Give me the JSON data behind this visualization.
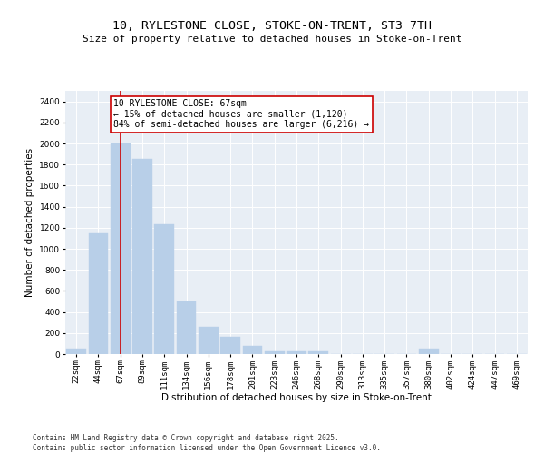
{
  "title": "10, RYLESTONE CLOSE, STOKE-ON-TRENT, ST3 7TH",
  "subtitle": "Size of property relative to detached houses in Stoke-on-Trent",
  "xlabel": "Distribution of detached houses by size in Stoke-on-Trent",
  "ylabel": "Number of detached properties",
  "categories": [
    "22sqm",
    "44sqm",
    "67sqm",
    "89sqm",
    "111sqm",
    "134sqm",
    "156sqm",
    "178sqm",
    "201sqm",
    "223sqm",
    "246sqm",
    "268sqm",
    "290sqm",
    "313sqm",
    "335sqm",
    "357sqm",
    "380sqm",
    "402sqm",
    "424sqm",
    "447sqm",
    "469sqm"
  ],
  "values": [
    50,
    1150,
    2000,
    1850,
    1230,
    500,
    260,
    165,
    80,
    30,
    25,
    22,
    3,
    2,
    1,
    1,
    50,
    1,
    1,
    1,
    1
  ],
  "bar_color": "#b8cfe8",
  "bar_edge_color": "#b8cfe8",
  "highlight_index": 2,
  "highlight_line_color": "#cc0000",
  "annotation_text": "10 RYLESTONE CLOSE: 67sqm\n← 15% of detached houses are smaller (1,120)\n84% of semi-detached houses are larger (6,216) →",
  "annotation_box_color": "#ffffff",
  "annotation_box_edge": "#cc0000",
  "ylim": [
    0,
    2500
  ],
  "yticks": [
    0,
    200,
    400,
    600,
    800,
    1000,
    1200,
    1400,
    1600,
    1800,
    2000,
    2200,
    2400
  ],
  "bg_color": "#e8eef5",
  "footer_line1": "Contains HM Land Registry data © Crown copyright and database right 2025.",
  "footer_line2": "Contains public sector information licensed under the Open Government Licence v3.0.",
  "title_fontsize": 9.5,
  "subtitle_fontsize": 8,
  "axis_label_fontsize": 7.5,
  "tick_fontsize": 6.5,
  "annotation_fontsize": 7,
  "footer_fontsize": 5.5
}
